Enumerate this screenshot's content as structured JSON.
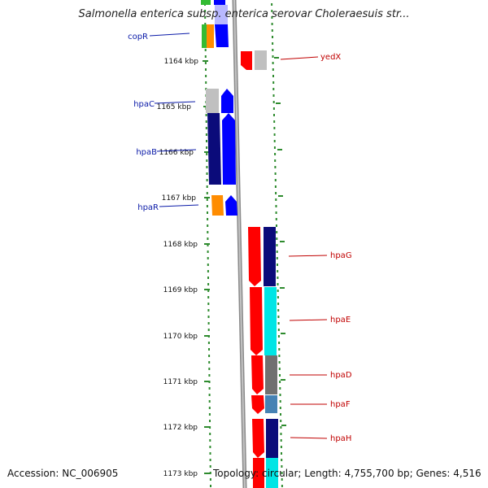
{
  "title": "Salmonella enterica subsp. enterica serovar Choleraesuis str...",
  "footer": {
    "accession": "Accession: NC_006905",
    "summary": "Topology: circular; Length: 4,755,700 bp; Genes: 4,516"
  },
  "colors": {
    "ruler_dots": "#2e8b2e",
    "backbone": "#8a8a8a",
    "label_left": "#0a1aa8",
    "label_right": "#c00000",
    "red": "#ff0000",
    "blue": "#0000ff",
    "navy": "#0b0b7a",
    "cyan": "#00e5e5",
    "gray": "#c0c0c0",
    "darkgray": "#707070",
    "steelblue": "#4682b4",
    "orange": "#ff8c00",
    "green": "#33bb33"
  },
  "ruler": [
    "1164 kbp",
    "1165 kbp",
    "1166 kbp",
    "1167 kbp",
    "1168 kbp",
    "1169 kbp",
    "1170 kbp",
    "1171 kbp",
    "1172 kbp",
    "1173 kbp"
  ],
  "left_genes": [
    "copR",
    "hpaC",
    "hpaB",
    "hpaR"
  ],
  "right_genes": [
    "yedX",
    "hpaG",
    "hpaE",
    "hpaD",
    "hpaF",
    "hpaH"
  ]
}
